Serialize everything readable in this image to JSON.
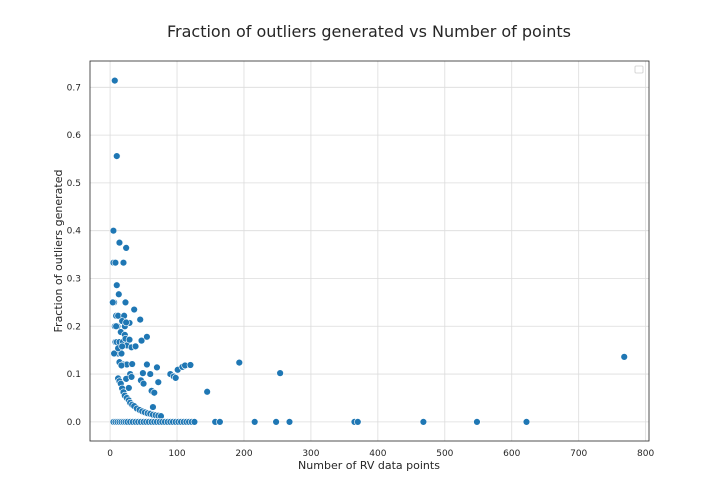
{
  "chart_data": {
    "type": "scatter",
    "title": "Fraction of outliers generated vs Number of points",
    "xlabel": "Number of RV data points",
    "ylabel": "Fraction of outliers generated",
    "xlim": [
      -30,
      805
    ],
    "ylim": [
      -0.04,
      0.755
    ],
    "xticks": [
      0,
      100,
      200,
      300,
      400,
      500,
      600,
      700,
      800
    ],
    "yticks": [
      0.0,
      0.1,
      0.2,
      0.3,
      0.4,
      0.5,
      0.6,
      0.7
    ],
    "xtick_labels": [
      "0",
      "100",
      "200",
      "300",
      "400",
      "500",
      "600",
      "700",
      "800"
    ],
    "ytick_labels": [
      "0.0",
      "0.1",
      "0.2",
      "0.3",
      "0.4",
      "0.5",
      "0.6",
      "0.7"
    ],
    "grid": true,
    "legend": "top-right (empty)",
    "color": "#1f77b4",
    "series": [
      {
        "x": [
          7,
          10,
          5,
          14,
          24,
          20,
          5,
          8,
          10,
          13,
          6,
          23,
          4,
          9,
          12,
          21,
          36,
          45,
          18,
          22,
          7,
          11,
          29,
          24,
          8,
          10,
          14,
          19,
          16,
          22,
          25,
          12,
          17,
          6,
          9,
          12,
          18,
          23,
          29,
          32,
          47,
          55,
          14,
          20,
          25,
          33,
          38,
          17,
          55,
          60,
          70,
          49,
          30,
          12,
          14,
          16,
          18,
          20,
          22,
          25,
          28,
          30,
          33,
          36,
          40,
          44,
          48,
          52,
          56,
          60,
          64,
          68,
          72,
          76,
          24,
          32,
          28,
          46,
          50,
          64,
          72,
          62,
          66,
          90,
          95,
          98,
          101,
          108,
          112,
          120,
          145,
          193,
          254,
          768,
          5,
          8,
          11,
          14,
          17,
          20,
          23,
          26,
          30,
          34,
          38,
          42,
          46,
          50,
          54,
          58,
          62,
          66,
          70,
          74,
          78,
          82,
          86,
          90,
          94,
          98,
          102,
          106,
          110,
          114,
          118,
          122,
          126,
          157,
          164,
          216,
          248,
          268,
          365,
          370,
          468,
          548,
          622
        ],
        "y": [
          0.714,
          0.556,
          0.4,
          0.375,
          0.364,
          0.333,
          0.333,
          0.333,
          0.286,
          0.267,
          0.25,
          0.25,
          0.25,
          0.222,
          0.222,
          0.222,
          0.235,
          0.214,
          0.211,
          0.2,
          0.2,
          0.2,
          0.207,
          0.208,
          0.167,
          0.167,
          0.167,
          0.167,
          0.188,
          0.182,
          0.16,
          0.143,
          0.143,
          0.143,
          0.2,
          0.154,
          0.158,
          0.174,
          0.172,
          0.156,
          0.17,
          0.178,
          0.125,
          0.12,
          0.12,
          0.121,
          0.158,
          0.118,
          0.12,
          0.1,
          0.114,
          0.102,
          0.1,
          0.091,
          0.085,
          0.08,
          0.07,
          0.062,
          0.055,
          0.05,
          0.045,
          0.04,
          0.036,
          0.033,
          0.028,
          0.025,
          0.022,
          0.02,
          0.018,
          0.017,
          0.015,
          0.014,
          0.013,
          0.012,
          0.09,
          0.094,
          0.071,
          0.087,
          0.08,
          0.031,
          0.083,
          0.065,
          0.061,
          0.1,
          0.095,
          0.092,
          0.109,
          0.115,
          0.118,
          0.119,
          0.063,
          0.124,
          0.102,
          0.136,
          0.0,
          0.0,
          0.0,
          0.0,
          0.0,
          0.0,
          0.0,
          0.0,
          0.0,
          0.0,
          0.0,
          0.0,
          0.0,
          0.0,
          0.0,
          0.0,
          0.0,
          0.0,
          0.0,
          0.0,
          0.0,
          0.0,
          0.0,
          0.0,
          0.0,
          0.0,
          0.0,
          0.0,
          0.0,
          0.0,
          0.0,
          0.0,
          0.0,
          0.0,
          0.0,
          0.0,
          0.0,
          0.0,
          0.0,
          0.0,
          0.0,
          0.0,
          0.0
        ]
      }
    ]
  }
}
